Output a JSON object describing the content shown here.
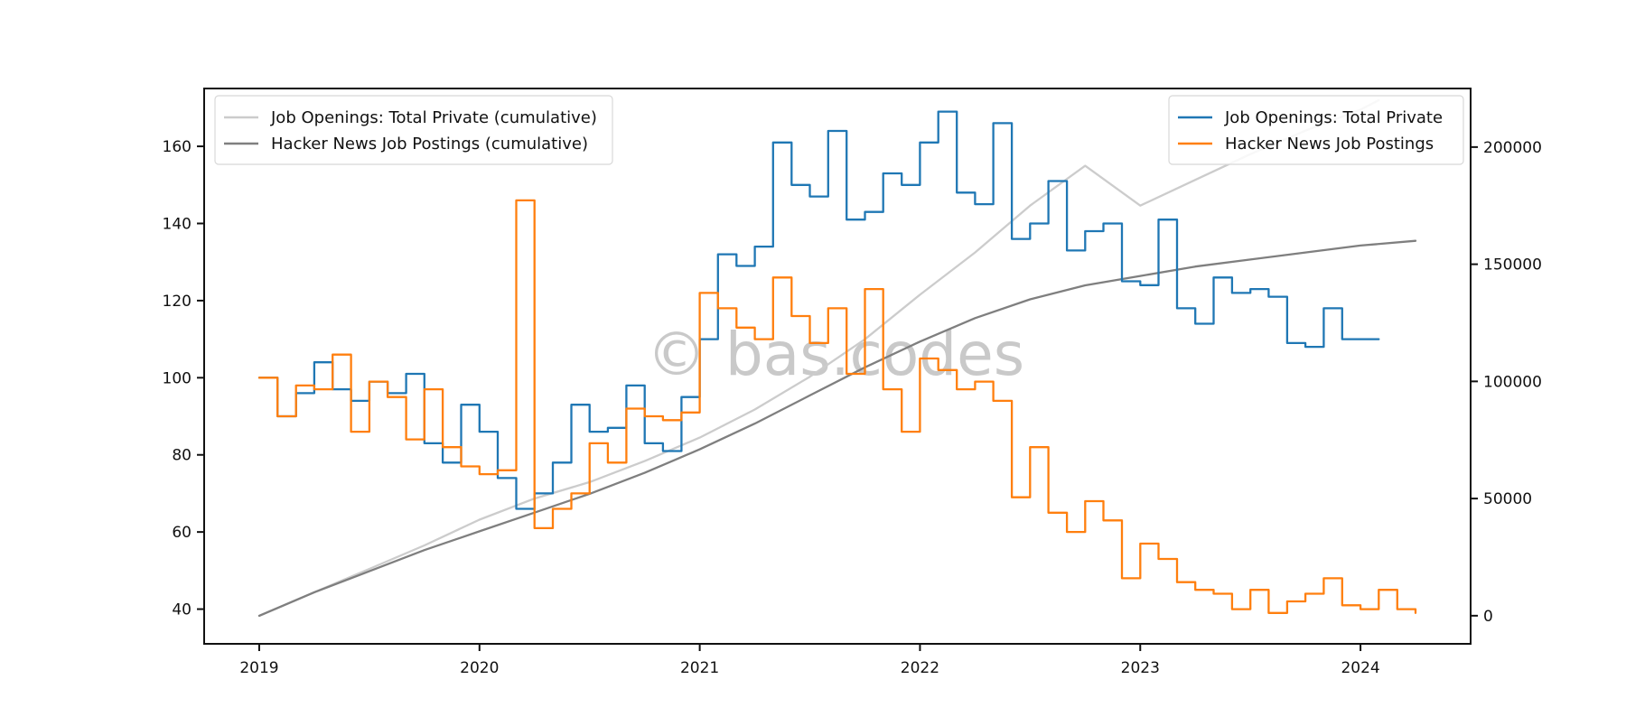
{
  "watermark": "© bas.codes",
  "colors": {
    "job_openings": "#1f77b4",
    "hn_postings": "#ff7f0e",
    "job_openings_cumulative": "#cccccc",
    "hn_postings_cumulative": "#7f7f7f",
    "axis": "#111111",
    "legend_border": "#d8d8d8"
  },
  "chart_data": {
    "type": "line",
    "title": "",
    "xlabel": "",
    "ylabel": "",
    "grid": false,
    "xlim": [
      2018.75,
      2024.5
    ],
    "x_ticks": [
      2019,
      2020,
      2021,
      2022,
      2023,
      2024
    ],
    "x_tick_labels": [
      "2019",
      "2020",
      "2021",
      "2022",
      "2023",
      "2024"
    ],
    "ylim_left": [
      31,
      175
    ],
    "y_ticks_left": [
      40,
      60,
      80,
      100,
      120,
      140,
      160
    ],
    "y_tick_labels_left": [
      "40",
      "60",
      "80",
      "100",
      "120",
      "140",
      "160"
    ],
    "ylim_right": [
      -12000,
      225000
    ],
    "y_ticks_right": [
      0,
      50000,
      100000,
      150000,
      200000
    ],
    "y_tick_labels_right": [
      "0",
      "50000",
      "100000",
      "150000",
      "200000"
    ],
    "legend_left": {
      "placement": "upper-left",
      "entries": [
        "Job Openings: Total Private (cumulative)",
        "Hacker News Job Postings (cumulative)"
      ]
    },
    "legend_right": {
      "placement": "upper-right",
      "entries": [
        "Job Openings: Total Private",
        "Hacker News Job Postings"
      ]
    },
    "series": [
      {
        "name": "Job Openings: Total Private",
        "axis": "left",
        "style": "step",
        "x": [
          2019.0,
          2019.083,
          2019.167,
          2019.25,
          2019.333,
          2019.417,
          2019.5,
          2019.583,
          2019.667,
          2019.75,
          2019.833,
          2019.917,
          2020.0,
          2020.083,
          2020.167,
          2020.25,
          2020.333,
          2020.417,
          2020.5,
          2020.583,
          2020.667,
          2020.75,
          2020.833,
          2020.917,
          2021.0,
          2021.083,
          2021.167,
          2021.25,
          2021.333,
          2021.417,
          2021.5,
          2021.583,
          2021.667,
          2021.75,
          2021.833,
          2021.917,
          2022.0,
          2022.083,
          2022.167,
          2022.25,
          2022.333,
          2022.417,
          2022.5,
          2022.583,
          2022.667,
          2022.75,
          2022.833,
          2022.917,
          2023.0,
          2023.083,
          2023.167,
          2023.25,
          2023.333,
          2023.417,
          2023.5,
          2023.583,
          2023.667,
          2023.75,
          2023.833,
          2023.917,
          2024.0,
          2024.083
        ],
        "values": [
          100,
          90,
          96,
          104,
          97,
          94,
          99,
          96,
          101,
          83,
          78,
          93,
          86,
          74,
          66,
          70,
          78,
          93,
          86,
          87,
          98,
          83,
          81,
          95,
          110,
          132,
          129,
          134,
          161,
          150,
          147,
          164,
          141,
          143,
          153,
          150,
          161,
          169,
          148,
          145,
          166,
          136,
          140,
          151,
          133,
          138,
          140,
          125,
          124,
          141,
          118,
          114,
          126,
          122,
          123,
          121,
          109,
          108,
          118,
          110,
          110,
          110
        ]
      },
      {
        "name": "Hacker News Job Postings",
        "axis": "left",
        "style": "step",
        "x": [
          2019.0,
          2019.083,
          2019.167,
          2019.25,
          2019.333,
          2019.417,
          2019.5,
          2019.583,
          2019.667,
          2019.75,
          2019.833,
          2019.917,
          2020.0,
          2020.083,
          2020.167,
          2020.25,
          2020.333,
          2020.417,
          2020.5,
          2020.583,
          2020.667,
          2020.75,
          2020.833,
          2020.917,
          2021.0,
          2021.083,
          2021.167,
          2021.25,
          2021.333,
          2021.417,
          2021.5,
          2021.583,
          2021.667,
          2021.75,
          2021.833,
          2021.917,
          2022.0,
          2022.083,
          2022.167,
          2022.25,
          2022.333,
          2022.417,
          2022.5,
          2022.583,
          2022.667,
          2022.75,
          2022.833,
          2022.917,
          2023.0,
          2023.083,
          2023.167,
          2023.25,
          2023.333,
          2023.417,
          2023.5,
          2023.583,
          2023.667,
          2023.75,
          2023.833,
          2023.917,
          2024.0,
          2024.083,
          2024.167,
          2024.25
        ],
        "values": [
          100,
          90,
          98,
          97,
          106,
          86,
          99,
          95,
          84,
          97,
          82,
          77,
          75,
          76,
          146,
          61,
          66,
          70,
          83,
          78,
          92,
          90,
          89,
          91,
          122,
          118,
          113,
          110,
          126,
          116,
          109,
          118,
          101,
          123,
          97,
          86,
          105,
          102,
          97,
          99,
          94,
          69,
          82,
          65,
          60,
          68,
          63,
          48,
          57,
          53,
          47,
          45,
          44,
          40,
          45,
          39,
          42,
          44,
          48,
          41,
          40,
          45,
          40,
          39
        ]
      },
      {
        "name": "Job Openings: Total Private (cumulative)",
        "axis": "right",
        "style": "line",
        "x": [
          2019.0,
          2019.25,
          2019.5,
          2019.75,
          2020.0,
          2020.25,
          2020.5,
          2020.75,
          2021.0,
          2021.25,
          2021.5,
          2021.75,
          2022.0,
          2022.25,
          2022.5,
          2022.75,
          2023.0,
          2023.25,
          2023.5,
          2023.75,
          2024.0,
          2024.083
        ],
        "values": [
          0,
          10000,
          20000,
          30000,
          41000,
          50000,
          57000,
          66000,
          76000,
          88000,
          102000,
          118000,
          137000,
          155000,
          175000,
          192000,
          175000,
          186000,
          197000,
          207000,
          216000,
          220000
        ]
      },
      {
        "name": "Hacker News Job Postings (cumulative)",
        "axis": "right",
        "style": "line",
        "x": [
          2019.0,
          2019.25,
          2019.5,
          2019.75,
          2020.0,
          2020.25,
          2020.5,
          2020.75,
          2021.0,
          2021.25,
          2021.5,
          2021.75,
          2022.0,
          2022.25,
          2022.5,
          2022.75,
          2023.0,
          2023.25,
          2023.5,
          2023.75,
          2024.0,
          2024.25
        ],
        "values": [
          0,
          10000,
          19000,
          28000,
          36000,
          44000,
          52000,
          61000,
          71000,
          82000,
          94000,
          106000,
          117000,
          127000,
          135000,
          141000,
          145000,
          149000,
          152000,
          155000,
          158000,
          160000
        ]
      }
    ]
  }
}
